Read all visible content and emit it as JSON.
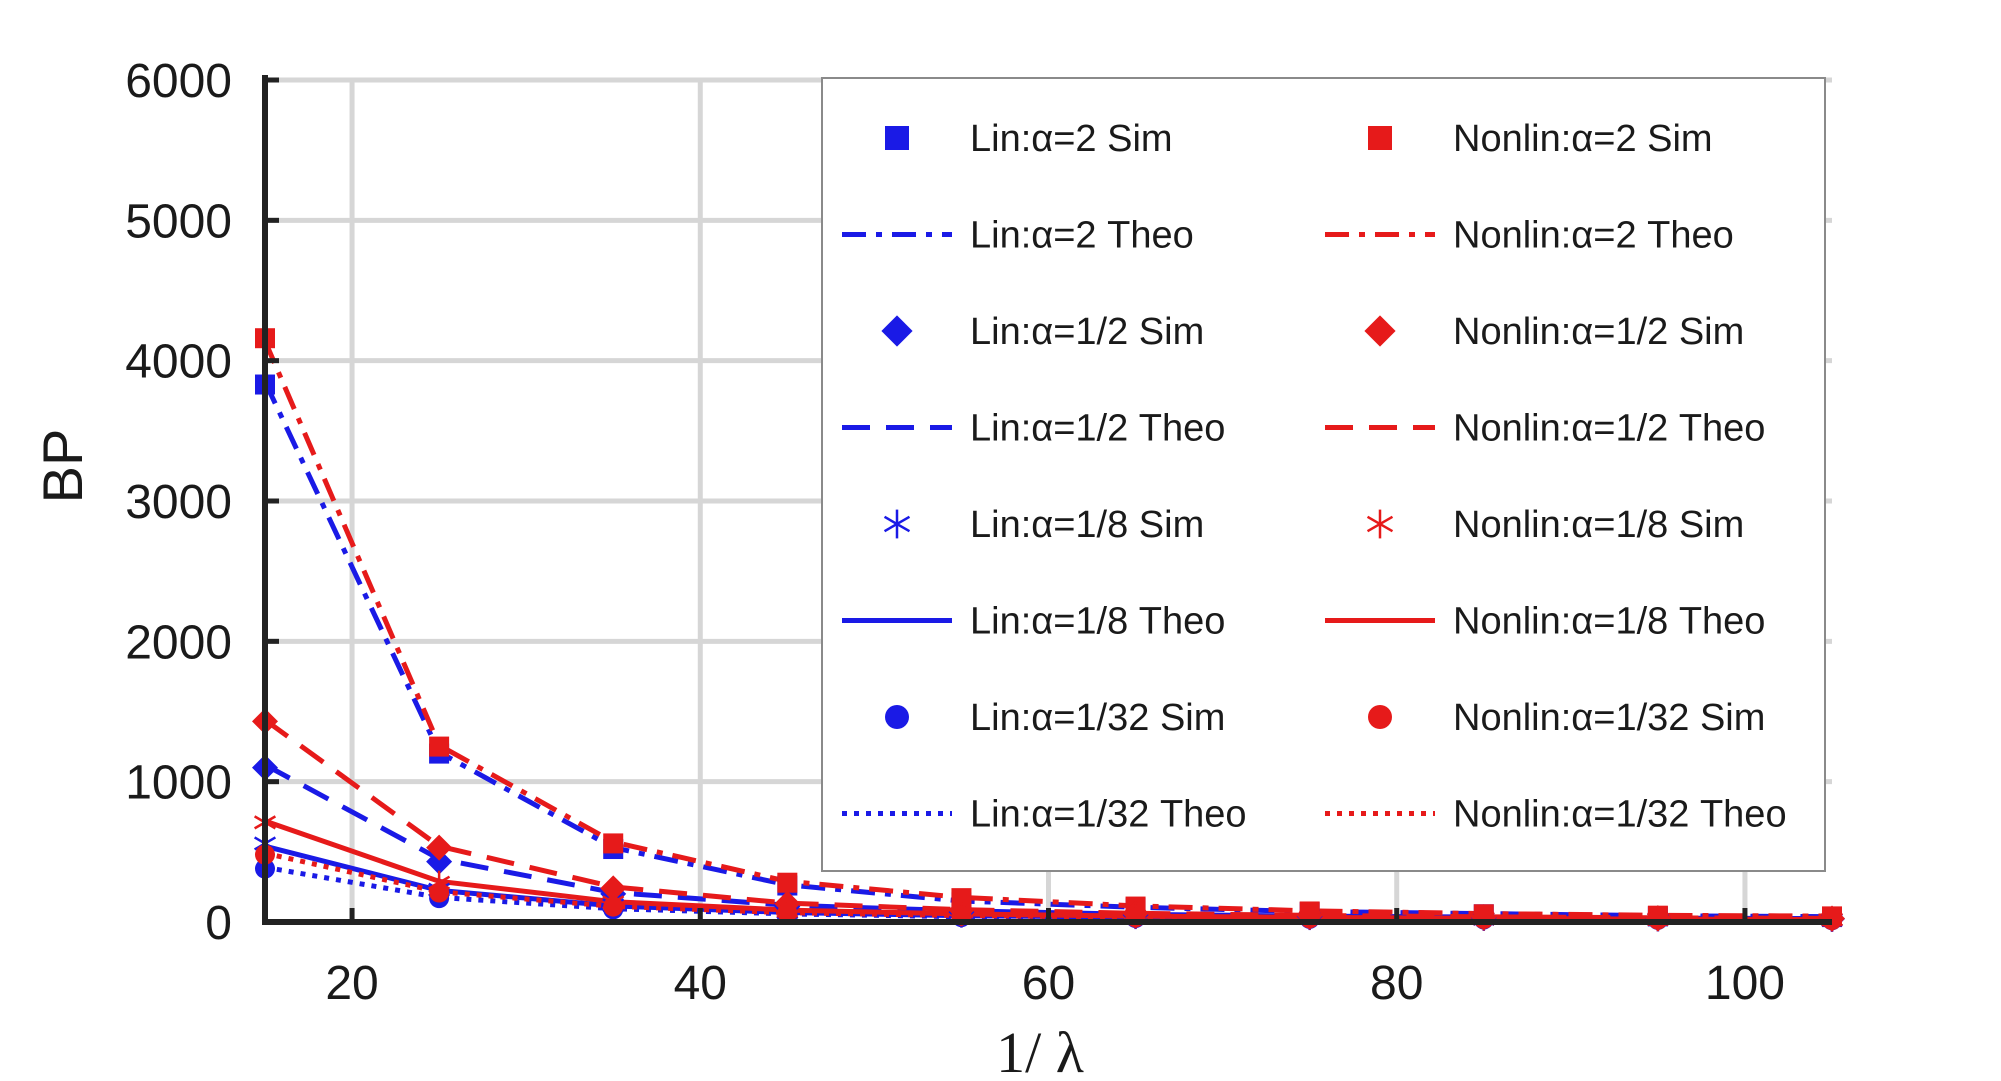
{
  "chart_data": {
    "type": "line",
    "title": "",
    "xlabel": "1/ λ",
    "ylabel": "BP",
    "xlim": [
      15,
      105
    ],
    "ylim": [
      0,
      6000
    ],
    "xticks": [
      20,
      40,
      60,
      80,
      100
    ],
    "yticks": [
      0,
      1000,
      2000,
      3000,
      4000,
      5000,
      6000
    ],
    "grid": true,
    "legend_position": "top-right",
    "colors": {
      "lin": "#1a1ae6",
      "nonlin": "#e61a1a"
    },
    "x": [
      15,
      25,
      35,
      45,
      55,
      65,
      75,
      85,
      95,
      105
    ],
    "series": [
      {
        "name": "Lin:α=2 Sim",
        "group": "lin",
        "kind": "sim",
        "marker": "square",
        "values": [
          3830,
          1200,
          520,
          260,
          140,
          100,
          70,
          55,
          40,
          35
        ]
      },
      {
        "name": "Lin:α=2 Theo",
        "group": "lin",
        "kind": "theo",
        "dash": "dashdot",
        "values": [
          3850,
          1210,
          530,
          265,
          150,
          105,
          75,
          60,
          45,
          38
        ]
      },
      {
        "name": "Lin:α=1/2 Sim",
        "group": "lin",
        "kind": "sim",
        "marker": "diamond",
        "values": [
          1100,
          430,
          200,
          110,
          70,
          50,
          40,
          30,
          25,
          22
        ]
      },
      {
        "name": "Lin:α=1/2 Theo",
        "group": "lin",
        "kind": "theo",
        "dash": "dashed",
        "values": [
          1120,
          450,
          210,
          120,
          80,
          55,
          42,
          35,
          28,
          24
        ]
      },
      {
        "name": "Lin:α=1/8 Sim",
        "group": "lin",
        "kind": "sim",
        "marker": "asterisk",
        "values": [
          560,
          230,
          120,
          70,
          45,
          35,
          28,
          22,
          18,
          15
        ]
      },
      {
        "name": "Lin:α=1/8 Theo",
        "group": "lin",
        "kind": "theo",
        "dash": "solid",
        "values": [
          540,
          225,
          115,
          68,
          45,
          35,
          27,
          22,
          18,
          15
        ]
      },
      {
        "name": "Lin:α=1/32 Sim",
        "group": "lin",
        "kind": "sim",
        "marker": "circle",
        "values": [
          380,
          170,
          90,
          55,
          35,
          28,
          22,
          18,
          15,
          12
        ]
      },
      {
        "name": "Lin:α=1/32 Theo",
        "group": "lin",
        "kind": "theo",
        "dash": "dotted",
        "values": [
          390,
          175,
          95,
          58,
          38,
          30,
          24,
          20,
          16,
          13
        ]
      },
      {
        "name": "Nonlin:α=2 Sim",
        "group": "nonlin",
        "kind": "sim",
        "marker": "square",
        "values": [
          4160,
          1250,
          560,
          280,
          170,
          110,
          75,
          55,
          45,
          40
        ]
      },
      {
        "name": "Nonlin:α=2 Theo",
        "group": "nonlin",
        "kind": "theo",
        "dash": "dashdot",
        "values": [
          4140,
          1260,
          570,
          290,
          175,
          115,
          80,
          60,
          48,
          42
        ]
      },
      {
        "name": "Nonlin:α=1/2 Sim",
        "group": "nonlin",
        "kind": "sim",
        "marker": "diamond",
        "values": [
          1430,
          530,
          240,
          130,
          85,
          60,
          45,
          35,
          28,
          25
        ]
      },
      {
        "name": "Nonlin:α=1/2 Theo",
        "group": "nonlin",
        "kind": "theo",
        "dash": "dashed",
        "values": [
          1440,
          540,
          250,
          135,
          88,
          62,
          47,
          37,
          30,
          26
        ]
      },
      {
        "name": "Nonlin:α=1/8 Sim",
        "group": "nonlin",
        "kind": "sim",
        "marker": "asterisk",
        "values": [
          710,
          280,
          140,
          80,
          55,
          40,
          32,
          25,
          20,
          18
        ]
      },
      {
        "name": "Nonlin:α=1/8 Theo",
        "group": "nonlin",
        "kind": "theo",
        "dash": "solid",
        "values": [
          720,
          290,
          145,
          85,
          58,
          42,
          33,
          26,
          21,
          18
        ]
      },
      {
        "name": "Nonlin:α=1/32 Sim",
        "group": "nonlin",
        "kind": "sim",
        "marker": "circle",
        "values": [
          480,
          210,
          110,
          65,
          45,
          33,
          26,
          21,
          17,
          14
        ]
      },
      {
        "name": "Nonlin:α=1/32 Theo",
        "group": "nonlin",
        "kind": "theo",
        "dash": "dotted",
        "values": [
          490,
          215,
          112,
          66,
          46,
          34,
          27,
          22,
          18,
          15
        ]
      }
    ]
  }
}
